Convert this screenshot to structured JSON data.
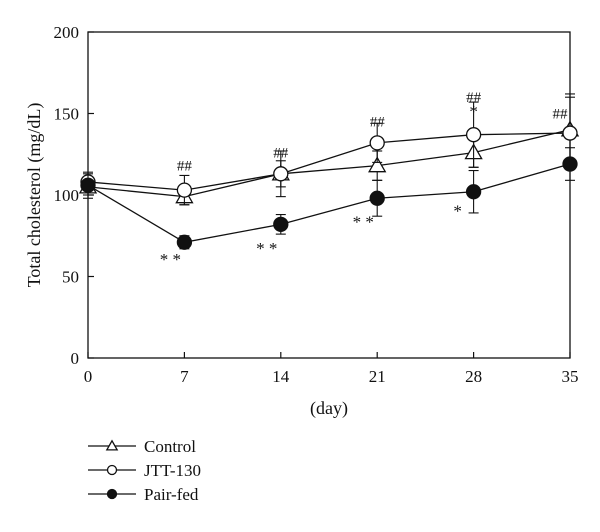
{
  "chart_data": {
    "type": "line",
    "xlabel": "(day)",
    "ylabel": "Total cholesterol (mg/dL)",
    "x": [
      0,
      7,
      14,
      21,
      28,
      35
    ],
    "xticks": [
      "0",
      "7",
      "14",
      "21",
      "28",
      "35"
    ],
    "yticks": [
      "0",
      "50",
      "100",
      "150",
      "200"
    ],
    "xlim": [
      0,
      35
    ],
    "ylim": [
      0,
      200
    ],
    "grid": false,
    "legend_position": "bottom-left",
    "series": [
      {
        "name": "Control",
        "marker": "open-triangle",
        "values": [
          105,
          99,
          113,
          118,
          126,
          140
        ],
        "errors": [
          5,
          5,
          8,
          9,
          9,
          22
        ]
      },
      {
        "name": "JTT-130",
        "marker": "open-circle",
        "values": [
          108,
          103,
          113,
          132,
          137,
          138
        ],
        "errors": [
          5,
          9,
          14,
          12,
          20,
          22
        ]
      },
      {
        "name": "Pair-fed",
        "marker": "filled-circle",
        "values": [
          106,
          71,
          82,
          98,
          102,
          119
        ],
        "errors": [
          8,
          4,
          6,
          11,
          13,
          10
        ]
      }
    ],
    "annotations": [
      {
        "x": 7,
        "y": 118,
        "text": "##",
        "kind": "hash"
      },
      {
        "x": 14,
        "y": 126,
        "text": "##",
        "kind": "hash"
      },
      {
        "x": 21,
        "y": 145,
        "text": "##",
        "kind": "hash"
      },
      {
        "x": 28,
        "y": 160,
        "text": "##",
        "kind": "hash"
      },
      {
        "x": 28,
        "y": 151,
        "text": "*",
        "kind": "star"
      },
      {
        "x": 35,
        "y": 150,
        "text": "##",
        "kind": "hash"
      },
      {
        "x": 7,
        "y": 60,
        "text": "* *",
        "kind": "star"
      },
      {
        "x": 14,
        "y": 67,
        "text": "* *",
        "kind": "star"
      },
      {
        "x": 21,
        "y": 83,
        "text": "* *",
        "kind": "star"
      },
      {
        "x": 28,
        "y": 90,
        "text": "*",
        "kind": "star"
      }
    ]
  }
}
